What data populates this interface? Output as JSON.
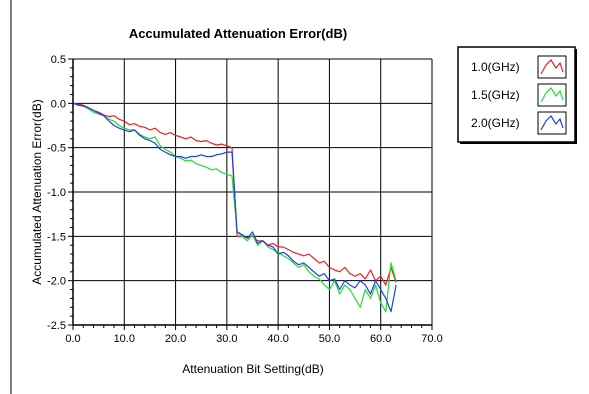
{
  "chart_data": {
    "type": "line",
    "title": "Accumulated Attenuation Error(dB)",
    "xlabel": "Attenuation Bit Setting(dB)",
    "ylabel": "Accumulated Attenuation Error(dB)",
    "xlim": [
      0,
      70
    ],
    "ylim": [
      -2.5,
      0.5
    ],
    "xticks": [
      0,
      10,
      20,
      30,
      40,
      50,
      60,
      70
    ],
    "xtick_labels": [
      "0.0",
      "10.0",
      "20.0",
      "30.0",
      "40.0",
      "50.0",
      "60.0",
      "70.0"
    ],
    "yticks": [
      0.5,
      0,
      -0.5,
      -1,
      -1.5,
      -2,
      -2.5
    ],
    "ytick_labels": [
      "0.5",
      "0.0",
      "-0.5",
      "-1.0",
      "-1.5",
      "-2.0",
      "-2.5"
    ],
    "grid": true,
    "legend_position": "top-right",
    "series": [
      {
        "name": "1.0(GHz)",
        "color": "#e8202a",
        "x": [
          0,
          1,
          2,
          3,
          4,
          5,
          6,
          7,
          8,
          9,
          10,
          11,
          12,
          13,
          14,
          15,
          16,
          17,
          18,
          19,
          20,
          21,
          22,
          23,
          24,
          25,
          26,
          27,
          28,
          29,
          30,
          31,
          32,
          33,
          34,
          35,
          36,
          37,
          38,
          39,
          40,
          41,
          42,
          43,
          44,
          45,
          46,
          47,
          48,
          49,
          50,
          51,
          52,
          53,
          54,
          55,
          56,
          57,
          58,
          59,
          60,
          61,
          62,
          63
        ],
        "y": [
          0,
          -0.01,
          -0.02,
          -0.05,
          -0.08,
          -0.1,
          -0.13,
          -0.15,
          -0.14,
          -0.18,
          -0.2,
          -0.24,
          -0.23,
          -0.26,
          -0.27,
          -0.3,
          -0.28,
          -0.33,
          -0.35,
          -0.33,
          -0.36,
          -0.38,
          -0.4,
          -0.38,
          -0.42,
          -0.43,
          -0.42,
          -0.45,
          -0.47,
          -0.46,
          -0.48,
          -0.5,
          -1.5,
          -1.5,
          -1.52,
          -1.5,
          -1.55,
          -1.55,
          -1.6,
          -1.58,
          -1.62,
          -1.62,
          -1.65,
          -1.68,
          -1.7,
          -1.72,
          -1.7,
          -1.75,
          -1.8,
          -1.78,
          -1.85,
          -1.88,
          -1.9,
          -1.85,
          -1.92,
          -1.95,
          -1.92,
          -1.98,
          -1.88,
          -2.0,
          -1.95,
          -2.05,
          -1.85,
          -2.02
        ]
      },
      {
        "name": "1.5(GHz)",
        "color": "#22dd33",
        "x": [
          0,
          1,
          2,
          3,
          4,
          5,
          6,
          7,
          8,
          9,
          10,
          11,
          12,
          13,
          14,
          15,
          16,
          17,
          18,
          19,
          20,
          21,
          22,
          23,
          24,
          25,
          26,
          27,
          28,
          29,
          30,
          31,
          32,
          33,
          34,
          35,
          36,
          37,
          38,
          39,
          40,
          41,
          42,
          43,
          44,
          45,
          46,
          47,
          48,
          49,
          50,
          51,
          52,
          53,
          54,
          55,
          56,
          57,
          58,
          59,
          60,
          61,
          62,
          63
        ],
        "y": [
          0,
          -0.02,
          -0.03,
          -0.06,
          -0.1,
          -0.12,
          -0.14,
          -0.18,
          -0.2,
          -0.25,
          -0.28,
          -0.3,
          -0.3,
          -0.35,
          -0.38,
          -0.4,
          -0.38,
          -0.48,
          -0.52,
          -0.55,
          -0.6,
          -0.62,
          -0.65,
          -0.64,
          -0.68,
          -0.7,
          -0.72,
          -0.75,
          -0.74,
          -0.78,
          -0.8,
          -0.82,
          -1.45,
          -1.5,
          -1.55,
          -1.48,
          -1.6,
          -1.55,
          -1.62,
          -1.65,
          -1.68,
          -1.72,
          -1.75,
          -1.8,
          -1.85,
          -1.82,
          -1.9,
          -1.95,
          -1.98,
          -2.05,
          -2.1,
          -2.0,
          -2.15,
          -2.05,
          -2.1,
          -2.2,
          -2.3,
          -2.1,
          -2.2,
          -2.05,
          -2.25,
          -2.35,
          -1.8,
          -2.0
        ]
      },
      {
        "name": "2.0(GHz)",
        "color": "#2040e0",
        "x": [
          0,
          1,
          2,
          3,
          4,
          5,
          6,
          7,
          8,
          9,
          10,
          11,
          12,
          13,
          14,
          15,
          16,
          17,
          18,
          19,
          20,
          21,
          22,
          23,
          24,
          25,
          26,
          27,
          28,
          29,
          30,
          31,
          32,
          33,
          34,
          35,
          36,
          37,
          38,
          39,
          40,
          41,
          42,
          43,
          44,
          45,
          46,
          47,
          48,
          49,
          50,
          51,
          52,
          53,
          54,
          55,
          56,
          57,
          58,
          59,
          60,
          61,
          62,
          63
        ],
        "y": [
          0,
          -0.02,
          -0.03,
          -0.05,
          -0.08,
          -0.11,
          -0.14,
          -0.2,
          -0.25,
          -0.28,
          -0.3,
          -0.32,
          -0.3,
          -0.36,
          -0.4,
          -0.42,
          -0.45,
          -0.52,
          -0.55,
          -0.58,
          -0.6,
          -0.6,
          -0.62,
          -0.6,
          -0.6,
          -0.58,
          -0.6,
          -0.6,
          -0.58,
          -0.57,
          -0.55,
          -0.55,
          -1.45,
          -1.48,
          -1.52,
          -1.45,
          -1.58,
          -1.55,
          -1.6,
          -1.62,
          -1.7,
          -1.68,
          -1.72,
          -1.78,
          -1.82,
          -1.8,
          -1.85,
          -1.9,
          -1.95,
          -1.92,
          -2.0,
          -1.98,
          -2.1,
          -2.0,
          -2.05,
          -2.08,
          -2.0,
          -2.05,
          -2.15,
          -2.0,
          -2.1,
          -2.2,
          -2.35,
          -2.05
        ]
      }
    ]
  }
}
